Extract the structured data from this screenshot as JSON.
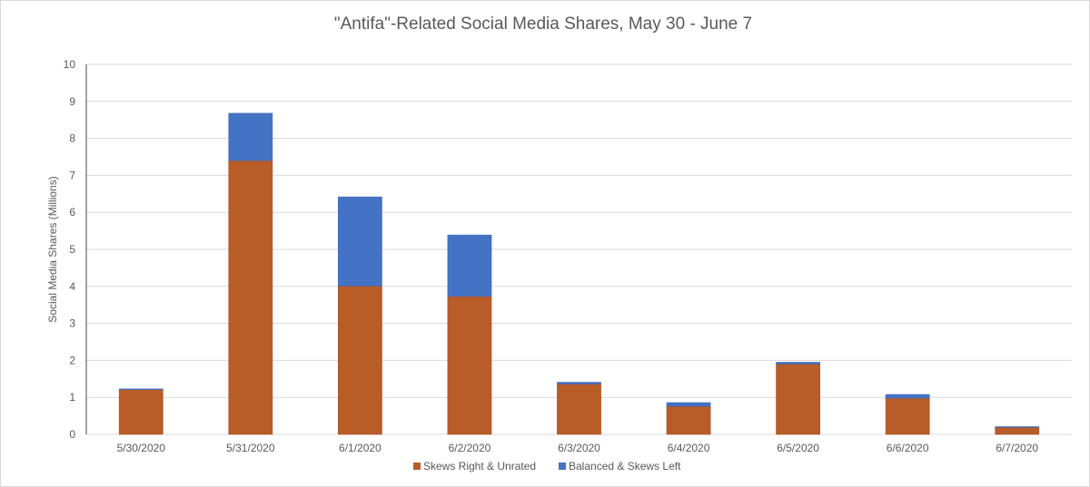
{
  "chart_data": {
    "type": "bar",
    "stacked": true,
    "title": "\"Antifa\"-Related Social Media Shares, May 30  - June 7",
    "xlabel": "",
    "ylabel": "Social Media Shares (Millions)",
    "ylim": [
      0,
      10
    ],
    "yticks": [
      "0",
      "1",
      "2",
      "3",
      "4",
      "5",
      "6",
      "7",
      "8",
      "9",
      "10"
    ],
    "grid": true,
    "legend_position": "bottom",
    "categories": [
      "5/30/2020",
      "5/31/2020",
      "6/1/2020",
      "6/2/2020",
      "6/3/2020",
      "6/4/2020",
      "6/5/2020",
      "6/6/2020",
      "6/7/2020"
    ],
    "series": [
      {
        "name": "Skews Right & Unrated",
        "color": "#B85C28",
        "values": [
          1.21,
          7.4,
          4.01,
          3.73,
          1.36,
          0.76,
          1.9,
          0.98,
          0.19
        ]
      },
      {
        "name": "Balanced & Skews Left",
        "color": "#4472C4",
        "values": [
          0.02,
          1.28,
          2.41,
          1.66,
          0.05,
          0.1,
          0.05,
          0.1,
          0.02
        ]
      }
    ]
  }
}
